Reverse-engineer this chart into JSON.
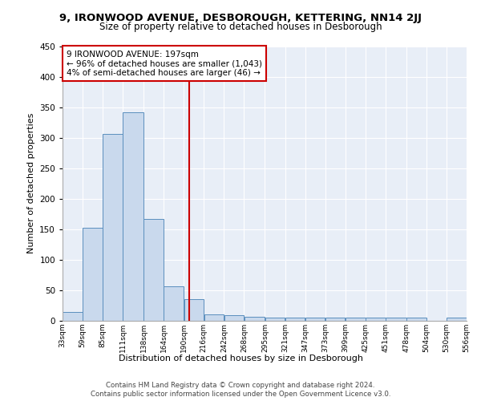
{
  "title1": "9, IRONWOOD AVENUE, DESBOROUGH, KETTERING, NN14 2JJ",
  "title2": "Size of property relative to detached houses in Desborough",
  "xlabel": "Distribution of detached houses by size in Desborough",
  "ylabel": "Number of detached properties",
  "bar_color": "#c9d9ed",
  "bar_edge_color": "#5b8fbe",
  "annotation_line_color": "#cc0000",
  "annotation_box_color": "#cc0000",
  "annotation_text": "9 IRONWOOD AVENUE: 197sqm\n← 96% of detached houses are smaller (1,043)\n4% of semi-detached houses are larger (46) →",
  "property_size": 197,
  "bin_edges": [
    33,
    59,
    85,
    111,
    138,
    164,
    190,
    216,
    242,
    268,
    295,
    321,
    347,
    373,
    399,
    425,
    451,
    478,
    504,
    530,
    556
  ],
  "bin_labels": [
    "33sqm",
    "59sqm",
    "85sqm",
    "111sqm",
    "138sqm",
    "164sqm",
    "190sqm",
    "216sqm",
    "242sqm",
    "268sqm",
    "295sqm",
    "321sqm",
    "347sqm",
    "373sqm",
    "399sqm",
    "425sqm",
    "451sqm",
    "478sqm",
    "504sqm",
    "530sqm",
    "556sqm"
  ],
  "counts": [
    15,
    152,
    306,
    341,
    167,
    57,
    35,
    10,
    9,
    6,
    5,
    5,
    5,
    5,
    5,
    5,
    5,
    5,
    0,
    5
  ],
  "ylim": [
    0,
    450
  ],
  "yticks": [
    0,
    50,
    100,
    150,
    200,
    250,
    300,
    350,
    400,
    450
  ],
  "footer1": "Contains HM Land Registry data © Crown copyright and database right 2024.",
  "footer2": "Contains public sector information licensed under the Open Government Licence v3.0.",
  "background_color": "#e8eef7"
}
